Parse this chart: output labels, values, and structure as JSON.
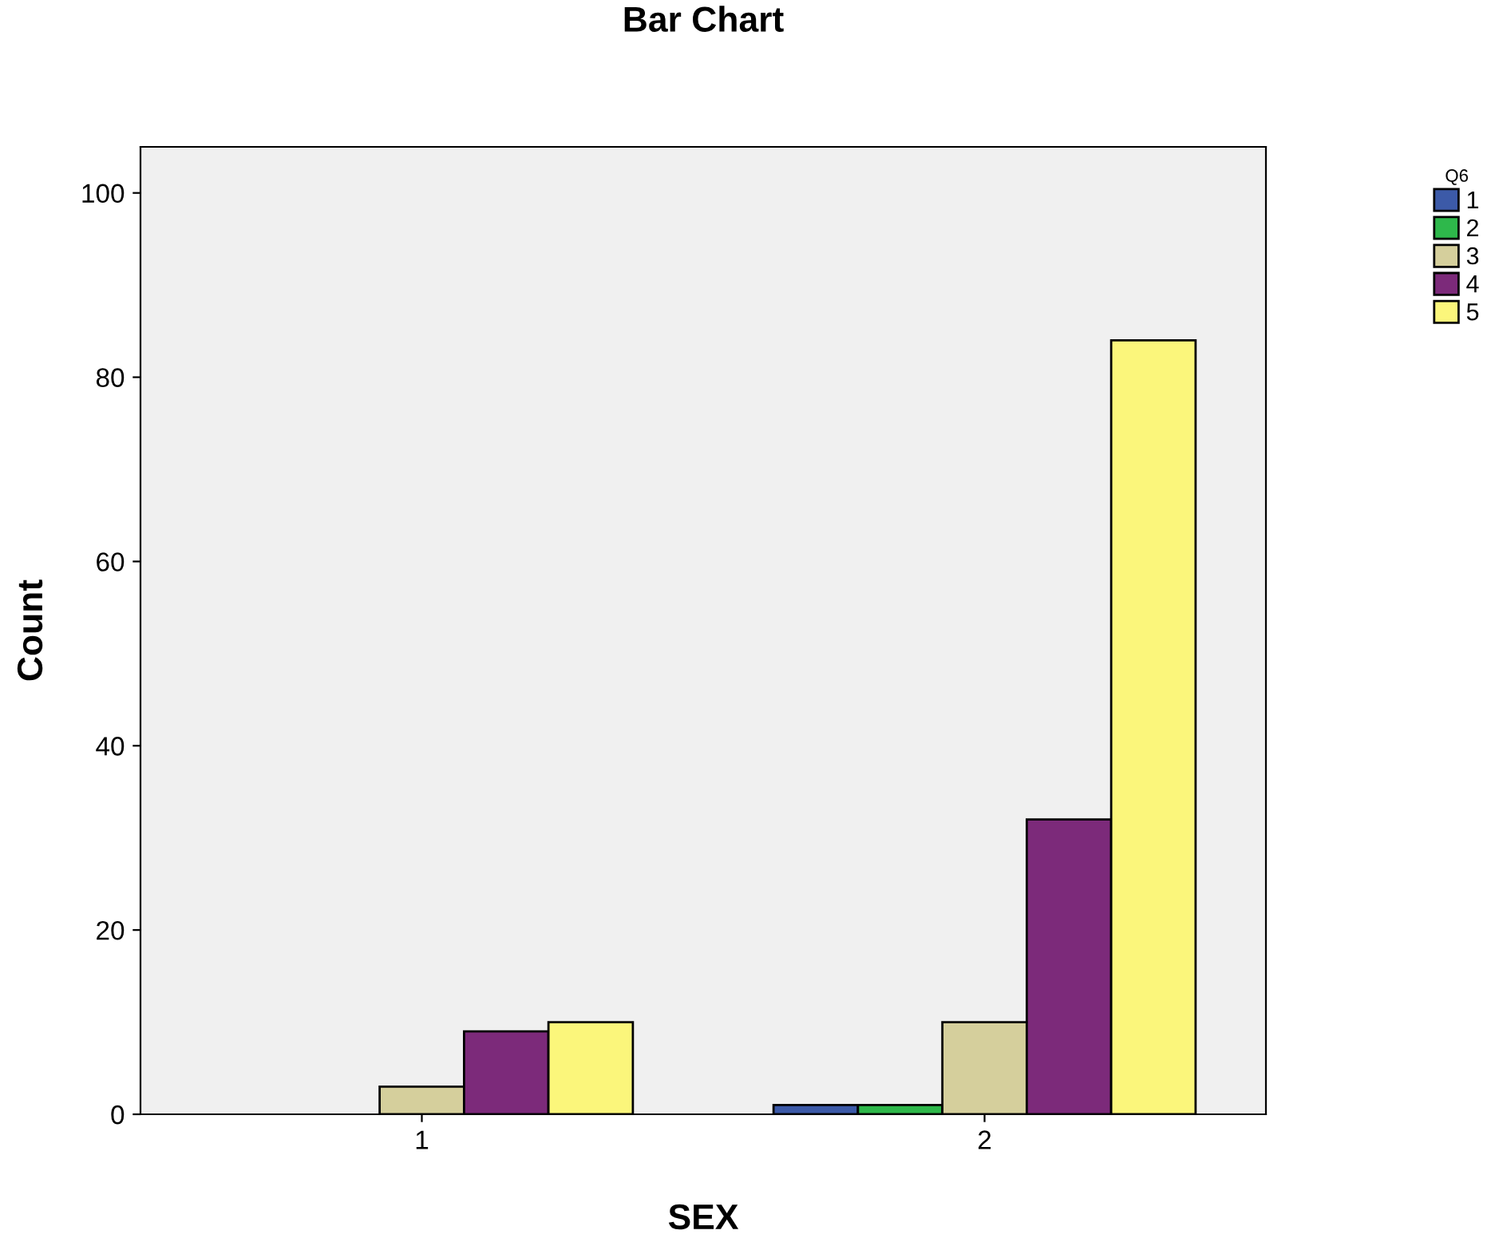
{
  "chart_data": {
    "type": "bar",
    "title": "Bar Chart",
    "xlabel": "SEX",
    "ylabel": "Count",
    "legend_title": "Q6",
    "categories": [
      "1",
      "2"
    ],
    "series": [
      {
        "name": "1",
        "color": "#3c5aa8",
        "values": [
          null,
          1
        ]
      },
      {
        "name": "2",
        "color": "#2eb84b",
        "values": [
          null,
          1
        ]
      },
      {
        "name": "3",
        "color": "#d5cf9c",
        "values": [
          3,
          10
        ]
      },
      {
        "name": "4",
        "color": "#7c2a7a",
        "values": [
          9,
          32
        ]
      },
      {
        "name": "5",
        "color": "#fbf67b",
        "values": [
          10,
          84
        ]
      }
    ],
    "ylim": [
      0,
      105
    ],
    "yticks": [
      0,
      20,
      40,
      60,
      80,
      100
    ],
    "grid": false,
    "legend": "right"
  }
}
